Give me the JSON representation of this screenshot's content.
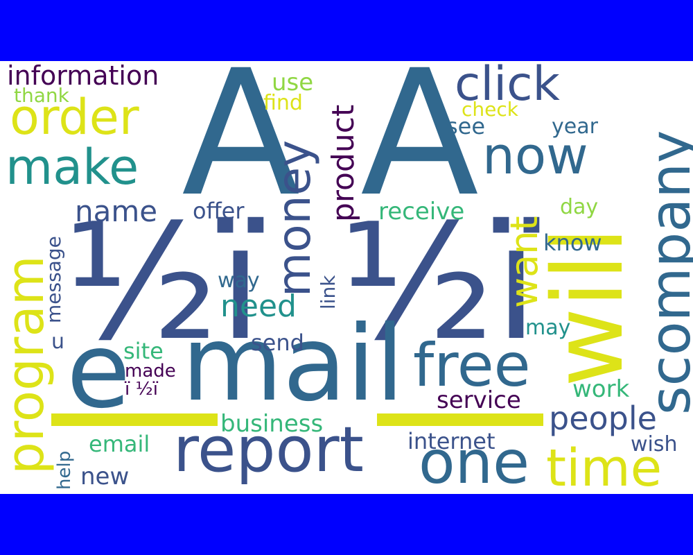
{
  "palette": {
    "dark_purple": "#440154",
    "indigo": "#3b528b",
    "slate": "#31688e",
    "teal": "#21918c",
    "green": "#35b779",
    "lime": "#90d743",
    "yellow": "#dde318",
    "background": "#ffffff",
    "border": "#0000ff"
  },
  "words": [
    {
      "text": "Â",
      "color": "slate"
    },
    {
      "text": "Â",
      "color": "slate"
    },
    {
      "text": "½ï",
      "color": "indigo"
    },
    {
      "text": "½ï",
      "color": "indigo"
    },
    {
      "text": "mail",
      "color": "slate"
    },
    {
      "text": "e",
      "color": "slate"
    },
    {
      "text": "will",
      "color": "yellow"
    },
    {
      "text": "report",
      "color": "indigo"
    },
    {
      "text": "scompany",
      "color": "slate"
    },
    {
      "text": "money",
      "color": "indigo"
    },
    {
      "text": "program",
      "color": "yellow"
    },
    {
      "text": "free",
      "color": "slate"
    },
    {
      "text": "one",
      "color": "slate"
    },
    {
      "text": "time",
      "color": "yellow"
    },
    {
      "text": "now",
      "color": "slate"
    },
    {
      "text": "make",
      "color": "teal"
    },
    {
      "text": "order",
      "color": "yellow"
    },
    {
      "text": "click",
      "color": "indigo"
    },
    {
      "text": "product",
      "color": "dark_purple"
    },
    {
      "text": "people",
      "color": "indigo"
    },
    {
      "text": "want",
      "color": "yellow"
    },
    {
      "text": "need",
      "color": "teal"
    },
    {
      "text": "information",
      "color": "dark_purple"
    },
    {
      "text": "name",
      "color": "indigo"
    },
    {
      "text": "business",
      "color": "green"
    },
    {
      "text": "service",
      "color": "dark_purple"
    },
    {
      "text": "internet",
      "color": "indigo"
    },
    {
      "text": "receive",
      "color": "green"
    },
    {
      "text": "offer",
      "color": "indigo"
    },
    {
      "text": "email",
      "color": "green"
    },
    {
      "text": "work",
      "color": "green"
    },
    {
      "text": "know",
      "color": "slate"
    },
    {
      "text": "send",
      "color": "indigo"
    },
    {
      "text": "site",
      "color": "green"
    },
    {
      "text": "new",
      "color": "indigo"
    },
    {
      "text": "way",
      "color": "slate"
    },
    {
      "text": "see",
      "color": "slate"
    },
    {
      "text": "year",
      "color": "slate"
    },
    {
      "text": "day",
      "color": "lime"
    },
    {
      "text": "may",
      "color": "teal"
    },
    {
      "text": "use",
      "color": "lime"
    },
    {
      "text": "find",
      "color": "yellow"
    },
    {
      "text": "check",
      "color": "yellow"
    },
    {
      "text": "thank",
      "color": "lime"
    },
    {
      "text": "message",
      "color": "indigo"
    },
    {
      "text": "link",
      "color": "indigo"
    },
    {
      "text": "made",
      "color": "dark_purple"
    },
    {
      "text": "ï ½ï",
      "color": "dark_purple"
    },
    {
      "text": "wish",
      "color": "indigo"
    },
    {
      "text": "help",
      "color": "slate"
    },
    {
      "text": "u",
      "color": "indigo"
    }
  ],
  "underscores": [
    {
      "color": "yellow"
    },
    {
      "color": "yellow"
    }
  ]
}
